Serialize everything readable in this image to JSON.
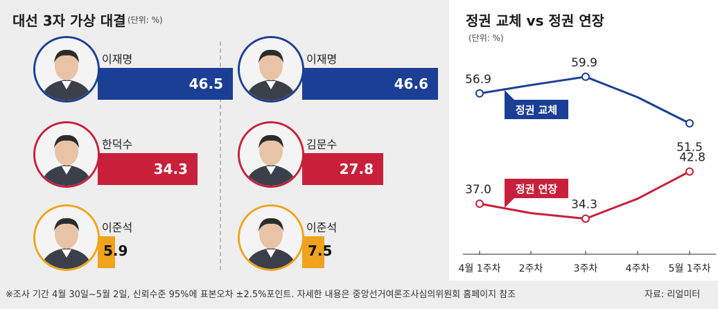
{
  "left": {
    "title": "대선 3자 가상 대결",
    "unit": "(단위: %)",
    "colors": {
      "blue": "#1b3f95",
      "red": "#c8203a",
      "orange": "#f1a31d"
    },
    "columns": [
      {
        "candidates": [
          {
            "name": "이재명",
            "value": 46.5,
            "color": "blue"
          },
          {
            "name": "한덕수",
            "value": 34.3,
            "color": "red"
          },
          {
            "name": "이준석",
            "value": 5.9,
            "color": "orange"
          }
        ]
      },
      {
        "candidates": [
          {
            "name": "이재명",
            "value": 46.6,
            "color": "blue"
          },
          {
            "name": "김문수",
            "value": 27.8,
            "color": "red"
          },
          {
            "name": "이준석",
            "value": 7.5,
            "color": "orange"
          }
        ]
      }
    ]
  },
  "chart_data": {
    "type": "line",
    "title": "정권 교체 vs 정권 연장",
    "unit": "(단위: %)",
    "categories": [
      "4월 1주차",
      "2주차",
      "3주차",
      "4주차",
      "5월 1주차"
    ],
    "ylim": [
      30,
      65
    ],
    "series": [
      {
        "name": "정권 교체",
        "values": [
          56.9,
          58.4,
          59.9,
          56.2,
          51.5
        ],
        "labeled_points": [
          0,
          2,
          4
        ],
        "color": "#1b3f95"
      },
      {
        "name": "정권 연장",
        "values": [
          37.0,
          35.3,
          34.3,
          37.9,
          42.8
        ],
        "labeled_points": [
          0,
          2,
          4
        ],
        "color": "#c8203a"
      }
    ]
  },
  "footnote": "※조사 기간 4월 30일~5월 2일, 신뢰수준 95%에 표본오차 ±2.5%포인트. 자세한 내용은 중앙선거여론조사심의위원회 홈페이지 참조",
  "source": "자료: 리얼미터"
}
